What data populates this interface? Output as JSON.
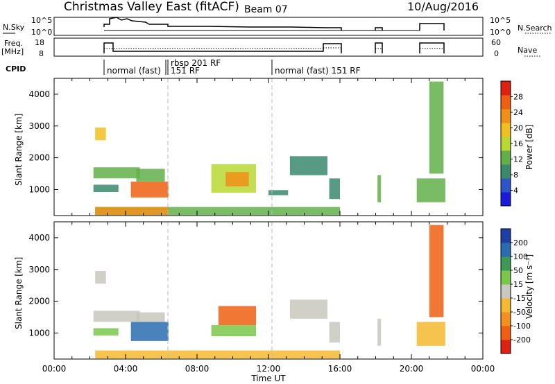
{
  "header": {
    "title": "Christmas Valley East (fitACF)",
    "beam": "Beam 07",
    "date": "10/Aug/2016"
  },
  "panels": {
    "nsky": {
      "label": "N.Sky",
      "left_ticks": [
        "10^5",
        "10^0"
      ],
      "right_ticks": [
        "10^5",
        "10^0"
      ],
      "right_label": "N.Search"
    },
    "freq": {
      "label_line1": "Freq.",
      "label_line2": "[MHz]",
      "left_ticks": [
        "18",
        "8"
      ],
      "right_ticks": [
        "60",
        "0"
      ],
      "right_label": "Nave"
    },
    "cpid": {
      "label": "CPID",
      "segments": [
        {
          "label": "normal (fast)",
          "x": 2.3
        },
        {
          "label": "rbsp 201 RF",
          "x": 5.95
        },
        {
          "label": "151 RF",
          "x": 6.05
        },
        {
          "label": "normal (fast) 151 RF",
          "x": 12.0
        }
      ]
    }
  },
  "colors": {
    "power_scale": [
      "#1a1adc",
      "#2b55c8",
      "#3b8a6e",
      "#62b04a",
      "#b8d832",
      "#f0c020",
      "#f09018",
      "#ee6010",
      "#e02010"
    ],
    "velocity_scale": [
      "#e02010",
      "#ee6010",
      "#f49020",
      "#f5b830",
      "#c8c8c0",
      "#7ac84a",
      "#3c9a55",
      "#2a6cb0",
      "#1e3ea8"
    ]
  },
  "chart_data": [
    {
      "type": "heatmap",
      "name": "power",
      "xlabel": "",
      "ylabel": "Slant Range [km]",
      "xlim": [
        0,
        24
      ],
      "ylim": [
        180,
        4500
      ],
      "yticks": [
        1000,
        2000,
        3000,
        4000
      ],
      "colorbar": {
        "label": "Power [dB]",
        "ticks": [
          4,
          8,
          12,
          16,
          20,
          24,
          28
        ],
        "range": [
          0,
          32
        ]
      },
      "regions": [
        {
          "t0": 2.3,
          "t1": 2.9,
          "r0": 2550,
          "r1": 2950,
          "v": 20
        },
        {
          "t0": 2.2,
          "t1": 4.8,
          "r0": 1350,
          "r1": 1700,
          "v": 12
        },
        {
          "t0": 2.2,
          "t1": 3.6,
          "r0": 920,
          "r1": 1150,
          "v": 10
        },
        {
          "t0": 4.3,
          "t1": 6.4,
          "r0": 750,
          "r1": 1250,
          "v": 26
        },
        {
          "t0": 4.6,
          "t1": 6.2,
          "r0": 1250,
          "r1": 1650,
          "v": 12
        },
        {
          "t0": 8.8,
          "t1": 11.3,
          "r0": 900,
          "r1": 1800,
          "v": 16
        },
        {
          "t0": 9.6,
          "t1": 10.9,
          "r0": 1100,
          "r1": 1550,
          "v": 22
        },
        {
          "t0": 2.3,
          "t1": 16.0,
          "r0": 200,
          "r1": 450,
          "v": 14
        },
        {
          "t0": 2.3,
          "t1": 6.4,
          "r0": 200,
          "r1": 450,
          "v": 22
        },
        {
          "t0": 13.2,
          "t1": 15.3,
          "r0": 1450,
          "r1": 2050,
          "v": 8
        },
        {
          "t0": 15.4,
          "t1": 16.0,
          "r0": 700,
          "r1": 1350,
          "v": 10
        },
        {
          "t0": 12.0,
          "t1": 13.1,
          "r0": 820,
          "r1": 980,
          "v": 8
        },
        {
          "t0": 18.1,
          "t1": 18.3,
          "r0": 600,
          "r1": 1450,
          "v": 14
        },
        {
          "t0": 20.3,
          "t1": 21.9,
          "r0": 600,
          "r1": 1350,
          "v": 12
        },
        {
          "t0": 21.0,
          "t1": 21.8,
          "r0": 1500,
          "r1": 4400,
          "v": 12
        }
      ]
    },
    {
      "type": "heatmap",
      "name": "velocity",
      "xlabel": "Time UT",
      "ylabel": "Slant Range [km]",
      "xlim": [
        0,
        24
      ],
      "ylim": [
        180,
        4500
      ],
      "yticks": [
        1000,
        2000,
        3000,
        4000
      ],
      "xticks": [
        "00:00",
        "04:00",
        "08:00",
        "12:00",
        "16:00",
        "20:00",
        "00:00"
      ],
      "colorbar": {
        "label": "Velocity [m s⁻¹]",
        "ticks": [
          "-200",
          "-100",
          "-50",
          "-15",
          "15",
          "50",
          "100",
          "200"
        ]
      },
      "regions": [
        {
          "t0": 2.3,
          "t1": 2.9,
          "r0": 2550,
          "r1": 2950,
          "v": 0
        },
        {
          "t0": 2.2,
          "t1": 4.8,
          "r0": 1350,
          "r1": 1700,
          "v": 0
        },
        {
          "t0": 2.2,
          "t1": 3.6,
          "r0": 920,
          "r1": 1150,
          "v": 30
        },
        {
          "t0": 4.3,
          "t1": 6.4,
          "r0": 750,
          "r1": 1350,
          "v": 120
        },
        {
          "t0": 4.6,
          "t1": 6.2,
          "r0": 1350,
          "r1": 1650,
          "v": 0
        },
        {
          "t0": 8.8,
          "t1": 11.3,
          "r0": 900,
          "r1": 1250,
          "v": 30
        },
        {
          "t0": 9.2,
          "t1": 11.3,
          "r0": 1250,
          "r1": 1850,
          "v": -120
        },
        {
          "t0": 2.3,
          "t1": 16.0,
          "r0": 200,
          "r1": 450,
          "v": -40
        },
        {
          "t0": 13.2,
          "t1": 15.3,
          "r0": 1450,
          "r1": 2050,
          "v": 0
        },
        {
          "t0": 15.4,
          "t1": 16.0,
          "r0": 700,
          "r1": 1350,
          "v": 0
        },
        {
          "t0": 18.1,
          "t1": 18.3,
          "r0": 600,
          "r1": 1450,
          "v": 0
        },
        {
          "t0": 20.3,
          "t1": 21.9,
          "r0": 600,
          "r1": 1350,
          "v": -30
        },
        {
          "t0": 21.0,
          "t1": 21.8,
          "r0": 1500,
          "r1": 4400,
          "v": -150
        }
      ]
    }
  ]
}
